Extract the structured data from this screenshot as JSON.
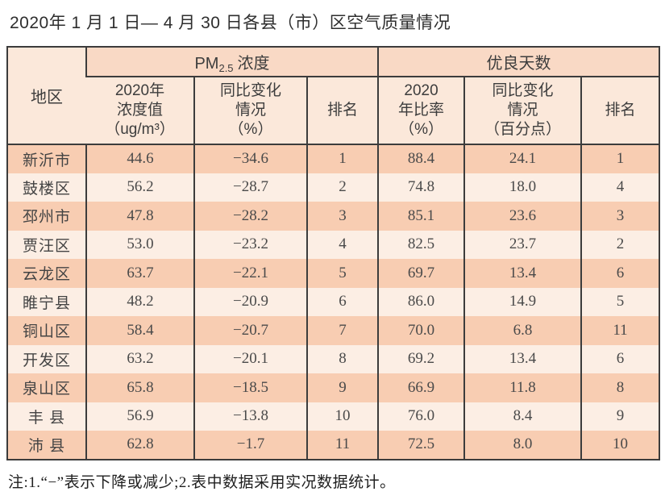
{
  "title": "2020年 1 月 1 日— 4 月 30 日各县（市）区空气质量情况",
  "note": "注:1.“−”表示下降或减少;2.表中数据采用实况数据统计。",
  "colors": {
    "row_odd": "#f8cdb2",
    "row_even": "#fceee4",
    "header_group": "#f9d9c5",
    "header_sub": "#fbe8da",
    "border": "#3c3c3c"
  },
  "table": {
    "region_header": "地区",
    "group_pm": {
      "prefix": "PM",
      "sub": "2.5",
      "suffix": "浓度"
    },
    "group_days": "优良天数",
    "sub_headers": {
      "pm_value": "2020年\n浓度值\n（ug/m³）",
      "pm_change": "同比变化\n情况\n（%）",
      "pm_rank": "排名",
      "days_ratio": "2020\n年比率\n（%）",
      "days_change": "同比变化\n情况\n（百分点）",
      "days_rank": "排名"
    },
    "rows": [
      {
        "region": "新沂市",
        "pm_value": "44.6",
        "pm_change": "−34.6",
        "pm_rank": "1",
        "days_ratio": "88.4",
        "days_change": "24.1",
        "days_rank": "1"
      },
      {
        "region": "鼓楼区",
        "pm_value": "56.2",
        "pm_change": "−28.7",
        "pm_rank": "2",
        "days_ratio": "74.8",
        "days_change": "18.0",
        "days_rank": "4"
      },
      {
        "region": "邳州市",
        "pm_value": "47.8",
        "pm_change": "−28.2",
        "pm_rank": "3",
        "days_ratio": "85.1",
        "days_change": "23.6",
        "days_rank": "3"
      },
      {
        "region": "贾汪区",
        "pm_value": "53.0",
        "pm_change": "−23.2",
        "pm_rank": "4",
        "days_ratio": "82.5",
        "days_change": "23.7",
        "days_rank": "2"
      },
      {
        "region": "云龙区",
        "pm_value": "63.7",
        "pm_change": "−22.1",
        "pm_rank": "5",
        "days_ratio": "69.7",
        "days_change": "13.4",
        "days_rank": "6"
      },
      {
        "region": "睢宁县",
        "pm_value": "48.2",
        "pm_change": "−20.9",
        "pm_rank": "6",
        "days_ratio": "86.0",
        "days_change": "14.9",
        "days_rank": "5"
      },
      {
        "region": "铜山区",
        "pm_value": "58.4",
        "pm_change": "−20.7",
        "pm_rank": "7",
        "days_ratio": "70.0",
        "days_change": "6.8",
        "days_rank": "11"
      },
      {
        "region": "开发区",
        "pm_value": "63.2",
        "pm_change": "−20.1",
        "pm_rank": "8",
        "days_ratio": "69.2",
        "days_change": "13.4",
        "days_rank": "6"
      },
      {
        "region": "泉山区",
        "pm_value": "65.8",
        "pm_change": "−18.5",
        "pm_rank": "9",
        "days_ratio": "66.9",
        "days_change": "11.8",
        "days_rank": "8"
      },
      {
        "region": "丰 县",
        "pm_value": "56.9",
        "pm_change": "−13.8",
        "pm_rank": "10",
        "days_ratio": "76.0",
        "days_change": "8.4",
        "days_rank": "9"
      },
      {
        "region": "沛 县",
        "pm_value": "62.8",
        "pm_change": "−1.7",
        "pm_rank": "11",
        "days_ratio": "72.5",
        "days_change": "8.0",
        "days_rank": "10"
      }
    ]
  },
  "chart_data": {
    "type": "table",
    "title": "2020年1月1日—4月30日各县（市）区空气质量情况",
    "column_groups": [
      "PM2.5浓度",
      "优良天数"
    ],
    "columns": [
      "地区",
      "2020年浓度值（ug/m³）",
      "同比变化情况（%）",
      "排名",
      "2020年比率（%）",
      "同比变化情况（百分点）",
      "排名"
    ],
    "rows": [
      [
        "新沂市",
        44.6,
        -34.6,
        1,
        88.4,
        24.1,
        1
      ],
      [
        "鼓楼区",
        56.2,
        -28.7,
        2,
        74.8,
        18.0,
        4
      ],
      [
        "邳州市",
        47.8,
        -28.2,
        3,
        85.1,
        23.6,
        3
      ],
      [
        "贾汪区",
        53.0,
        -23.2,
        4,
        82.5,
        23.7,
        2
      ],
      [
        "云龙区",
        63.7,
        -22.1,
        5,
        69.7,
        13.4,
        6
      ],
      [
        "睢宁县",
        48.2,
        -20.9,
        6,
        86.0,
        14.9,
        5
      ],
      [
        "铜山区",
        58.4,
        -20.7,
        7,
        70.0,
        6.8,
        11
      ],
      [
        "开发区",
        63.2,
        -20.1,
        8,
        69.2,
        13.4,
        6
      ],
      [
        "泉山区",
        65.8,
        -18.5,
        9,
        66.9,
        11.8,
        8
      ],
      [
        "丰县",
        56.9,
        -13.8,
        10,
        76.0,
        8.4,
        9
      ],
      [
        "沛县",
        62.8,
        -1.7,
        11,
        72.5,
        8.0,
        10
      ]
    ],
    "footnote": "注:1.“−”表示下降或减少;2.表中数据采用实况数据统计。"
  }
}
